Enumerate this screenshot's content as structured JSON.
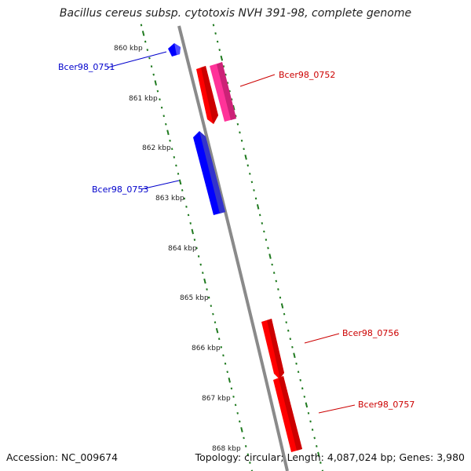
{
  "title": "Bacillus cereus subsp. cytotoxis NVH 391-98, complete genome",
  "footer": {
    "accession": "Accession: NC_009674",
    "stats": "Topology: circular; Length: 4,087,024 bp; Genes: 3,980"
  },
  "colors": {
    "backbone": "#8a8a8a",
    "ticks": "#1f7a1f",
    "gene_forward_label": "#cc0000",
    "gene_reverse_label": "#0000cc",
    "gene_red": "#ff0000",
    "gene_pink": "#ff3399",
    "gene_blue": "#0000ff"
  },
  "axis": {
    "unit": "kbp",
    "ticks": [
      "860 kbp",
      "861 kbp",
      "862 kbp",
      "863 kbp",
      "864 kbp",
      "865 kbp",
      "866 kbp",
      "867 kbp",
      "868 kbp"
    ]
  },
  "genes": [
    {
      "id": "Bcer98_0751",
      "strand": "reverse",
      "color": "blue"
    },
    {
      "id": "Bcer98_0752",
      "strand": "forward",
      "color": "pink"
    },
    {
      "id": "Bcer98_0753",
      "strand": "reverse",
      "color": "blue"
    },
    {
      "id": "Bcer98_0756",
      "strand": "forward",
      "color": "red"
    },
    {
      "id": "Bcer98_0757",
      "strand": "forward",
      "color": "red"
    }
  ]
}
